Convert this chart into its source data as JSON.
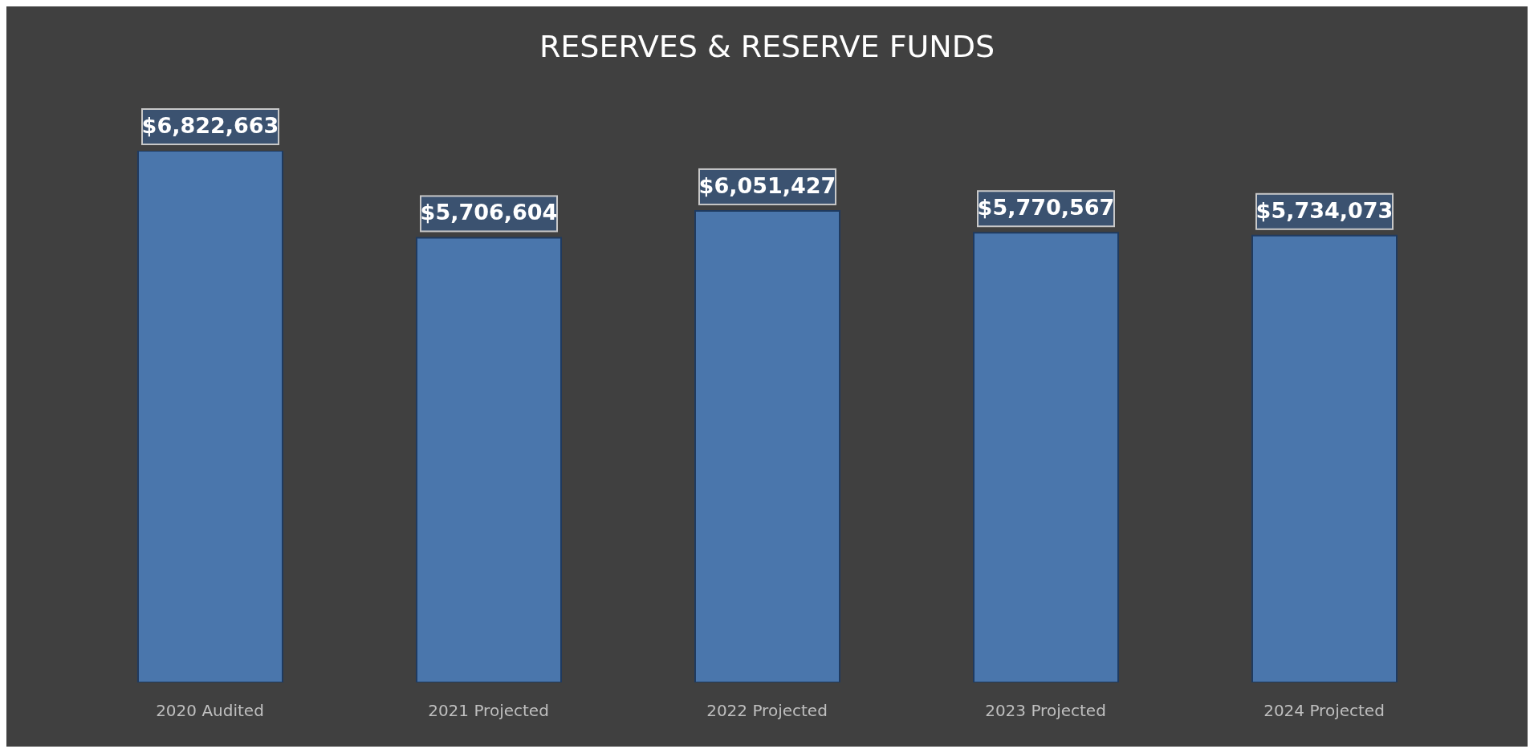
{
  "chart_data": {
    "type": "bar",
    "title": "RESERVES & RESERVE FUNDS",
    "categories": [
      "2020 Audited",
      "2021 Projected",
      "2022 Projected",
      "2023 Projected",
      "2024 Projected"
    ],
    "values": [
      6822663,
      5706604,
      6051427,
      5770567,
      5734073
    ],
    "color": "#4a76ac",
    "value_labels": [
      "$6,822,663",
      "$5,706,604",
      "$6,051,427",
      "$5,770,567",
      "$5,734,073"
    ],
    "grid": false,
    "legend": false
  }
}
